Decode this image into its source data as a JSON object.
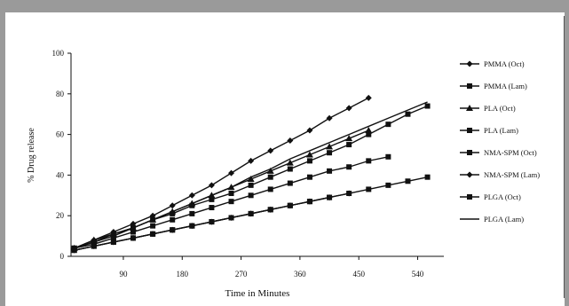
{
  "chart_data": {
    "type": "line",
    "xlabel": "Time in Minutes",
    "ylabel": "% Drug release",
    "xlim": [
      10,
      580
    ],
    "ylim": [
      0,
      100
    ],
    "xticks": [
      90,
      180,
      270,
      360,
      450,
      540
    ],
    "yticks": [
      0,
      20,
      40,
      60,
      80,
      100
    ],
    "grid": false,
    "legend_position": "right",
    "series": [
      {
        "name": "PMMA (Oct)",
        "marker": "diamond",
        "line": true,
        "x": [
          15,
          45,
          75,
          105,
          135,
          165,
          195,
          225,
          255,
          285,
          315,
          345,
          375,
          405,
          435,
          465
        ],
        "y": [
          4,
          8,
          12,
          16,
          20,
          25,
          30,
          35,
          41,
          47,
          52,
          57,
          62,
          68,
          73,
          78
        ]
      },
      {
        "name": "PMMA (Lam)",
        "marker": "square",
        "line": true,
        "x": [
          15,
          45,
          75,
          105,
          135,
          165,
          195,
          225,
          255,
          285,
          315,
          345,
          375,
          405,
          435,
          465,
          495,
          525,
          555
        ],
        "y": [
          4,
          7,
          10,
          14,
          18,
          21,
          25,
          28,
          31,
          35,
          39,
          43,
          47,
          51,
          55,
          60,
          65,
          70,
          74
        ]
      },
      {
        "name": "PLA (Oct)",
        "marker": "triangle",
        "line": true,
        "x": [
          15,
          45,
          75,
          105,
          135,
          165,
          195,
          225,
          255,
          285,
          315,
          345,
          375,
          405,
          435,
          465
        ],
        "y": [
          4,
          8,
          11,
          14,
          18,
          22,
          26,
          30,
          34,
          38,
          42,
          46,
          50,
          54,
          58,
          62
        ]
      },
      {
        "name": "PLA (Lam)",
        "marker": "square",
        "line": true,
        "x": [
          15,
          45,
          75,
          105,
          135,
          165,
          195,
          225,
          255,
          285,
          315,
          345,
          375,
          405,
          435,
          465,
          495
        ],
        "y": [
          4,
          6,
          9,
          12,
          15,
          18,
          21,
          24,
          27,
          30,
          33,
          36,
          39,
          42,
          44,
          47,
          49
        ]
      },
      {
        "name": "NMA-SPM (Oct)",
        "marker": "square",
        "line": true,
        "x": [
          15,
          45,
          75,
          105,
          135,
          165,
          195,
          225,
          255,
          285,
          315,
          345,
          375,
          405,
          435,
          465,
          495,
          525,
          555,
          585
        ],
        "y": [
          3,
          5,
          7,
          9,
          11,
          13,
          15,
          17,
          19,
          21,
          23,
          25,
          27,
          29,
          31,
          33,
          35,
          37,
          39,
          41
        ]
      },
      {
        "name": "NMA-SPM (Lam)",
        "marker": "diamond",
        "line": true,
        "x": [
          15,
          45,
          75,
          105,
          135,
          165,
          195,
          225,
          255,
          285,
          315,
          345,
          375,
          405,
          435
        ],
        "y": [
          3,
          5,
          7,
          9,
          11,
          13,
          15,
          17,
          19,
          21,
          23,
          25,
          27,
          29,
          31
        ]
      },
      {
        "name": "PLGA (Oct)",
        "marker": "square",
        "line": true,
        "x": [
          15,
          45,
          75,
          105,
          135,
          165,
          195,
          225,
          255,
          285,
          315,
          345,
          375,
          405
        ],
        "y": [
          3,
          5,
          7,
          9,
          11,
          13,
          15,
          17,
          19,
          21,
          23,
          25,
          27,
          29
        ]
      },
      {
        "name": "PLGA (Lam)",
        "marker": "none",
        "line": true,
        "x": [
          15,
          45,
          75,
          105,
          135,
          165,
          195,
          225,
          255,
          285,
          315,
          345,
          375,
          405,
          435,
          465,
          495,
          525,
          555
        ],
        "y": [
          4,
          7,
          11,
          14,
          18,
          22,
          26,
          30,
          34,
          39,
          43,
          48,
          52,
          56,
          60,
          64,
          68,
          72,
          76
        ]
      }
    ]
  }
}
